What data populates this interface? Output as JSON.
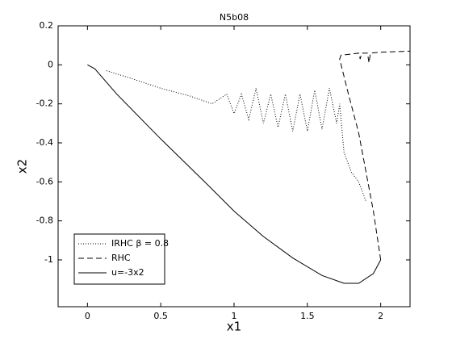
{
  "chart_data": {
    "type": "line",
    "title": "N5b08",
    "x_label": "x1",
    "y_label": "x2",
    "xlim": [
      -0.2,
      2.2
    ],
    "xticks": [
      0,
      0.5,
      1,
      1.5,
      2
    ],
    "ylim": [
      -1.24,
      0.2
    ],
    "yticks": [
      0.2,
      0,
      -0.2,
      -0.4,
      -0.6,
      -0.8,
      -1
    ],
    "legend": "southwest",
    "series": [
      {
        "name": "IRHC  β = 0.8",
        "color": "#000000",
        "style": "dotted",
        "x": [
          0.13,
          0.3,
          0.5,
          0.7,
          0.85,
          0.95,
          1.0,
          1.05,
          1.1,
          1.15,
          1.2,
          1.25,
          1.3,
          1.35,
          1.4,
          1.45,
          1.5,
          1.55,
          1.6,
          1.65,
          1.7,
          1.72,
          1.75,
          1.8,
          1.85,
          1.9
        ],
        "values": [
          -0.03,
          -0.07,
          -0.12,
          -0.16,
          -0.2,
          -0.15,
          -0.25,
          -0.15,
          -0.28,
          -0.12,
          -0.3,
          -0.15,
          -0.32,
          -0.15,
          -0.34,
          -0.15,
          -0.34,
          -0.13,
          -0.33,
          -0.12,
          -0.3,
          -0.2,
          -0.45,
          -0.55,
          -0.6,
          -0.7
        ]
      },
      {
        "name": "RHC",
        "color": "#000000",
        "style": "dashed",
        "x": [
          2,
          1.95,
          1.9,
          1.85,
          1.78,
          1.74,
          1.72,
          1.73,
          1.8,
          1.85,
          1.86,
          1.87,
          1.91,
          1.92,
          1.93,
          2.0,
          2.2
        ],
        "values": [
          -1,
          -0.75,
          -0.55,
          -0.35,
          -0.15,
          -0.03,
          0.03,
          0.05,
          0.055,
          0.06,
          0.03,
          0.06,
          0.06,
          0.01,
          0.06,
          0.065,
          0.07
        ]
      },
      {
        "name": "u=-3x2",
        "color": "#000000",
        "style": "solid",
        "x": [
          0,
          0.05,
          0.2,
          0.5,
          0.8,
          1.0,
          1.2,
          1.4,
          1.6,
          1.75,
          1.85,
          1.95,
          2
        ],
        "values": [
          0,
          -0.02,
          -0.15,
          -0.38,
          -0.6,
          -0.75,
          -0.88,
          -0.99,
          -1.08,
          -1.12,
          -1.12,
          -1.07,
          -1
        ]
      }
    ]
  }
}
